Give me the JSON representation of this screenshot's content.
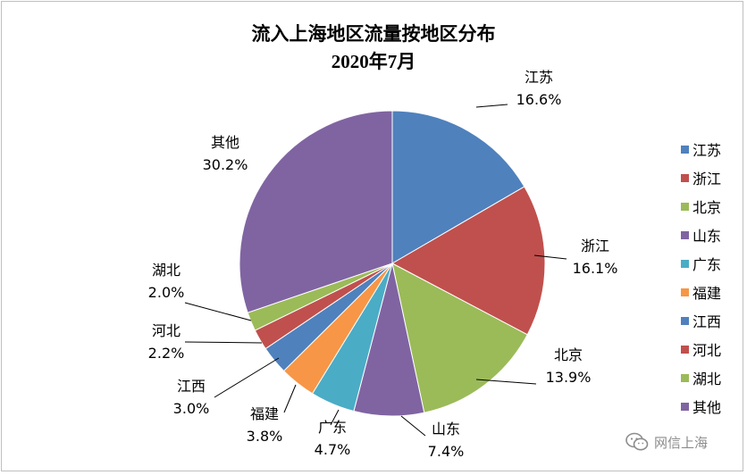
{
  "chart_data": {
    "type": "pie",
    "title": "流入上海地区流量按地区分布",
    "subtitle": "2020年7月",
    "slices": [
      {
        "name": "江苏",
        "value": 16.6,
        "label": "16.6%",
        "color": "#4f81bd"
      },
      {
        "name": "浙江",
        "value": 16.1,
        "label": "16.1%",
        "color": "#c0504d"
      },
      {
        "name": "北京",
        "value": 13.9,
        "label": "13.9%",
        "color": "#9bbb59"
      },
      {
        "name": "山东",
        "value": 7.4,
        "label": "7.4%",
        "color": "#8064a2"
      },
      {
        "name": "广东",
        "value": 4.7,
        "label": "4.7%",
        "color": "#4bacc6"
      },
      {
        "name": "福建",
        "value": 3.8,
        "label": "3.8%",
        "color": "#f79646"
      },
      {
        "name": "江西",
        "value": 3.0,
        "label": "3.0%",
        "color": "#4f81bd"
      },
      {
        "name": "河北",
        "value": 2.2,
        "label": "2.2%",
        "color": "#c0504d"
      },
      {
        "name": "湖北",
        "value": 2.0,
        "label": "2.0%",
        "color": "#9bbb59"
      },
      {
        "name": "其他",
        "value": 30.2,
        "label": "30.2%",
        "color": "#8064a2"
      }
    ],
    "legend_position": "right"
  },
  "watermark": {
    "text": "网信上海",
    "icon": "wechat-icon"
  }
}
